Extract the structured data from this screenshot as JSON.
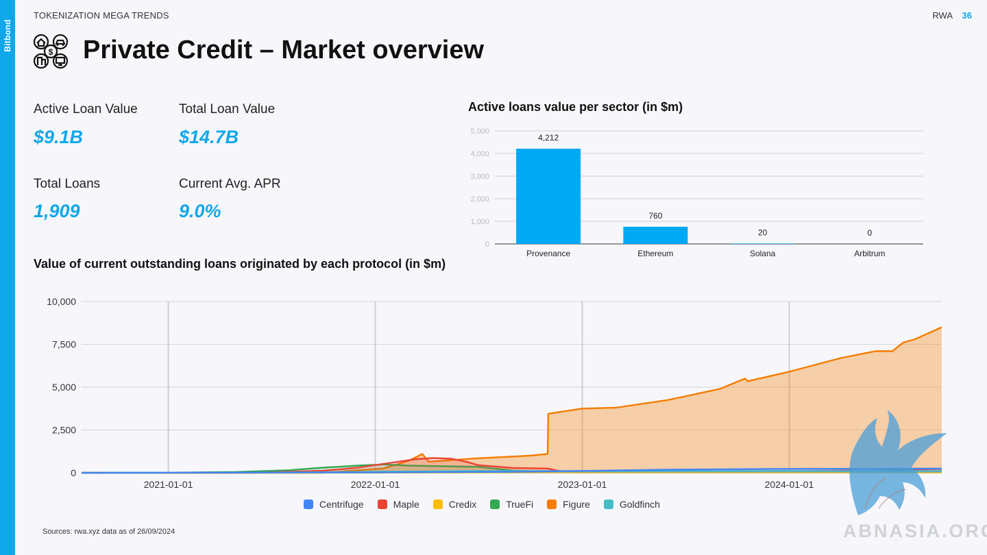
{
  "brand": "Bitbond",
  "header": {
    "section": "TOKENIZATION MEGA TRENDS",
    "topic": "RWA",
    "page": "36"
  },
  "title": "Private Credit – Market overview",
  "icons": {
    "title_icon": "property-finance-icon",
    "watermark": "griffin-logo"
  },
  "colors": {
    "accent": "#10a7ea",
    "bar": "#00a9f4"
  },
  "kpis": [
    {
      "label": "Active Loan Value",
      "value": "$9.1B"
    },
    {
      "label": "Total Loan Value",
      "value": "$14.7B"
    },
    {
      "label": "Total Loans",
      "value": "1,909"
    },
    {
      "label": "Current Avg. APR",
      "value": "9.0%"
    }
  ],
  "bar_title": "Active loans value per sector (in $m)",
  "line_title": "Value of current outstanding loans originated by each protocol (in $m)",
  "source": "Sources: rwa.xyz data as of 26/09/2024",
  "watermark_text": "ABNASIA.ORG",
  "chart_data": [
    {
      "type": "bar",
      "title": "Active loans value per sector (in $m)",
      "categories": [
        "Provenance",
        "Ethereum",
        "Solana",
        "Arbitrum"
      ],
      "values": [
        4212,
        760,
        20,
        0
      ],
      "data_labels": [
        "4,212",
        "760",
        "20",
        "0"
      ],
      "ylim": [
        0,
        5000
      ],
      "yticks": [
        0,
        1000,
        2000,
        3000,
        4000,
        5000
      ],
      "ytick_labels": [
        "0",
        "1,000",
        "2,000",
        "3,000",
        "4,000",
        "5,000"
      ],
      "grid": true
    },
    {
      "type": "area",
      "title": "Value of current outstanding loans originated by each protocol (in $m)",
      "xlim": [
        "2020-08-01",
        "2024-09-26"
      ],
      "ylim": [
        0,
        10000
      ],
      "xticks": [
        "2021-01-01",
        "2022-01-01",
        "2023-01-01",
        "2024-01-01"
      ],
      "yticks": [
        0,
        2500,
        5000,
        7500,
        10000
      ],
      "ytick_labels": [
        "0",
        "2,500",
        "5,000",
        "7,500",
        "10,000"
      ],
      "grid": true,
      "legend": "bottom",
      "series": [
        {
          "name": "Centrifuge",
          "color": "#4285f4",
          "fill": false,
          "points": [
            [
              "2020-08-01",
              0
            ],
            [
              "2022-01-01",
              20
            ],
            [
              "2022-09-01",
              60
            ],
            [
              "2023-01-01",
              110
            ],
            [
              "2023-06-01",
              180
            ],
            [
              "2024-01-01",
              230
            ],
            [
              "2024-09-26",
              250
            ]
          ]
        },
        {
          "name": "Maple",
          "color": "#ea4335",
          "fill": false,
          "points": [
            [
              "2020-08-01",
              0
            ],
            [
              "2021-06-01",
              0
            ],
            [
              "2021-10-01",
              120
            ],
            [
              "2021-12-01",
              300
            ],
            [
              "2022-02-01",
              600
            ],
            [
              "2022-03-15",
              800
            ],
            [
              "2022-04-15",
              860
            ],
            [
              "2022-05-15",
              820
            ],
            [
              "2022-06-10",
              650
            ],
            [
              "2022-07-01",
              450
            ],
            [
              "2022-09-01",
              280
            ],
            [
              "2022-11-01",
              250
            ],
            [
              "2022-12-01",
              40
            ],
            [
              "2023-01-01",
              25
            ],
            [
              "2023-06-01",
              35
            ],
            [
              "2024-01-01",
              90
            ],
            [
              "2024-06-01",
              150
            ],
            [
              "2024-09-26",
              230
            ]
          ]
        },
        {
          "name": "Credix",
          "color": "#fbbc04",
          "fill": false,
          "points": [
            [
              "2020-08-01",
              0
            ],
            [
              "2022-01-01",
              5
            ],
            [
              "2022-06-01",
              25
            ],
            [
              "2023-01-01",
              30
            ],
            [
              "2024-01-01",
              30
            ],
            [
              "2024-09-26",
              25
            ]
          ]
        },
        {
          "name": "TrueFi",
          "color": "#34a853",
          "fill": false,
          "points": [
            [
              "2020-08-01",
              0
            ],
            [
              "2021-01-01",
              10
            ],
            [
              "2021-05-01",
              50
            ],
            [
              "2021-08-01",
              150
            ],
            [
              "2021-10-01",
              300
            ],
            [
              "2021-12-01",
              420
            ],
            [
              "2022-01-15",
              490
            ],
            [
              "2022-03-01",
              420
            ],
            [
              "2022-05-01",
              380
            ],
            [
              "2022-07-01",
              350
            ],
            [
              "2022-09-01",
              130
            ],
            [
              "2022-11-01",
              70
            ],
            [
              "2023-01-01",
              40
            ],
            [
              "2024-01-01",
              30
            ],
            [
              "2024-09-26",
              60
            ]
          ]
        },
        {
          "name": "Figure",
          "color": "#f57c00",
          "fill": true,
          "points": [
            [
              "2020-08-01",
              0
            ],
            [
              "2021-10-01",
              0
            ],
            [
              "2021-12-01",
              150
            ],
            [
              "2022-01-15",
              250
            ],
            [
              "2022-03-01",
              700
            ],
            [
              "2022-03-25",
              1100
            ],
            [
              "2022-04-05",
              650
            ],
            [
              "2022-07-01",
              850
            ],
            [
              "2022-10-01",
              1000
            ],
            [
              "2022-11-01",
              1100
            ],
            [
              "2022-11-02",
              3450
            ],
            [
              "2023-01-01",
              3750
            ],
            [
              "2023-03-01",
              3800
            ],
            [
              "2023-06-01",
              4250
            ],
            [
              "2023-09-01",
              4900
            ],
            [
              "2023-10-15",
              5500
            ],
            [
              "2023-10-20",
              5350
            ],
            [
              "2024-01-01",
              5900
            ],
            [
              "2024-04-01",
              6700
            ],
            [
              "2024-06-01",
              7100
            ],
            [
              "2024-07-01",
              7100
            ],
            [
              "2024-07-20",
              7600
            ],
            [
              "2024-08-10",
              7800
            ],
            [
              "2024-09-26",
              8500
            ]
          ]
        },
        {
          "name": "Goldfinch",
          "color": "#46bdc6",
          "fill": false,
          "points": [
            [
              "2020-08-01",
              0
            ],
            [
              "2021-06-01",
              10
            ],
            [
              "2022-01-01",
              60
            ],
            [
              "2022-06-01",
              100
            ],
            [
              "2023-01-01",
              100
            ],
            [
              "2024-01-01",
              100
            ],
            [
              "2024-09-26",
              95
            ]
          ]
        }
      ]
    }
  ]
}
